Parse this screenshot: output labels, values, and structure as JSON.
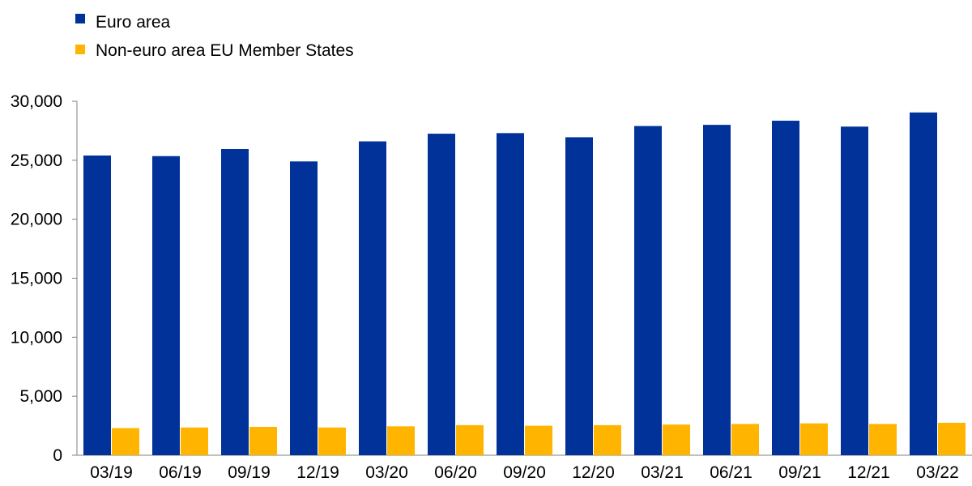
{
  "chart_data": {
    "type": "bar",
    "title": "",
    "xlabel": "",
    "ylabel": "",
    "categories": [
      "03/19",
      "06/19",
      "09/19",
      "12/19",
      "03/20",
      "06/20",
      "09/20",
      "12/20",
      "03/21",
      "06/21",
      "09/21",
      "12/21",
      "03/22"
    ],
    "series": [
      {
        "name": "Euro area",
        "color": "#003299",
        "values": [
          25400,
          25350,
          25950,
          24900,
          26600,
          27250,
          27300,
          26950,
          27900,
          28000,
          28350,
          27850,
          29050
        ]
      },
      {
        "name": "Non-euro area EU Member States",
        "color": "#FFB400",
        "values": [
          2300,
          2350,
          2400,
          2350,
          2450,
          2550,
          2500,
          2550,
          2600,
          2650,
          2700,
          2650,
          2750
        ]
      }
    ],
    "ylim": [
      0,
      30000
    ],
    "yticks": [
      0,
      5000,
      10000,
      15000,
      20000,
      25000,
      30000
    ],
    "ytick_labels": [
      "0",
      "5,000",
      "10,000",
      "15,000",
      "20,000",
      "25,000",
      "30,000"
    ],
    "legend_position": "top-left",
    "grid": false
  }
}
